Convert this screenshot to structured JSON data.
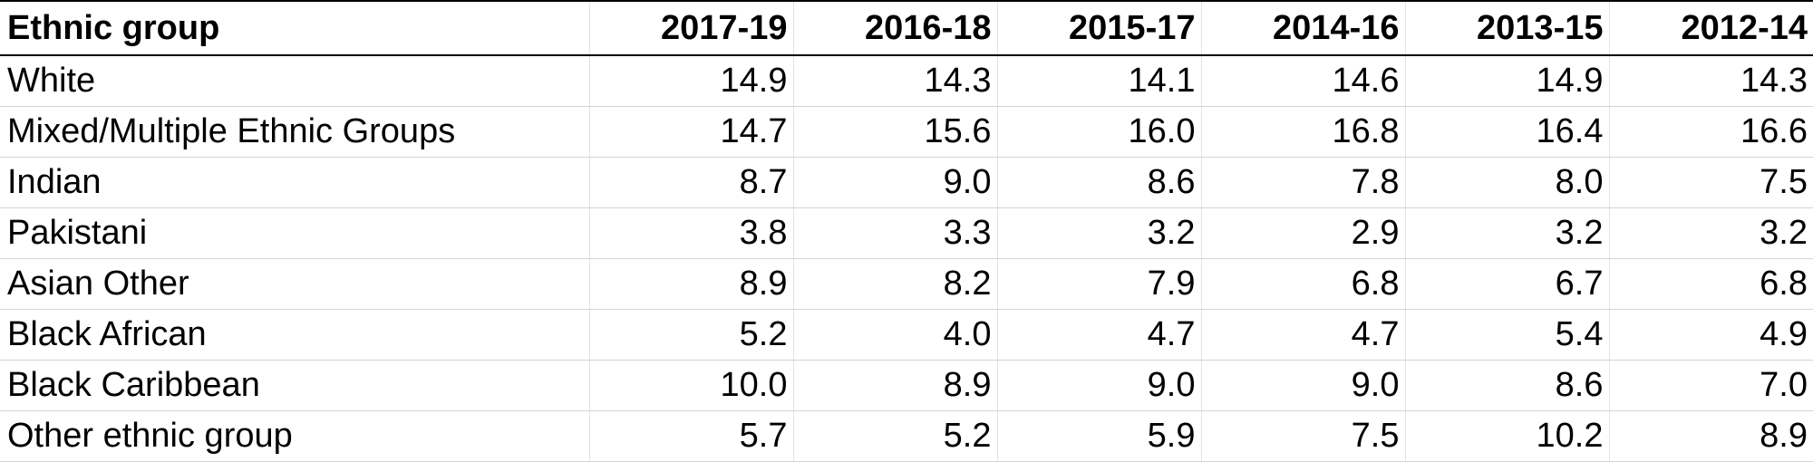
{
  "table": {
    "header": [
      "Ethnic group",
      "2017-19",
      "2016-18",
      "2015-17",
      "2014-16",
      "2013-15",
      "2012-14"
    ],
    "rows": [
      [
        "White",
        "14.9",
        "14.3",
        "14.1",
        "14.6",
        "14.9",
        "14.3"
      ],
      [
        "Mixed/Multiple Ethnic Groups",
        "14.7",
        "15.6",
        "16.0",
        "16.8",
        "16.4",
        "16.6"
      ],
      [
        "Indian",
        "8.7",
        "9.0",
        "8.6",
        "7.8",
        "8.0",
        "7.5"
      ],
      [
        "Pakistani",
        "3.8",
        "3.3",
        "3.2",
        "2.9",
        "3.2",
        "3.2"
      ],
      [
        "Asian Other",
        "8.9",
        "8.2",
        "7.9",
        "6.8",
        "6.7",
        "6.8"
      ],
      [
        "Black African",
        "5.2",
        "4.0",
        "4.7",
        "4.7",
        "5.4",
        "4.9"
      ],
      [
        "Black Caribbean",
        "10.0",
        "8.9",
        "9.0",
        "9.0",
        "8.6",
        "7.0"
      ],
      [
        "Other ethnic group",
        "5.7",
        "5.2",
        "5.9",
        "7.5",
        "10.2",
        "8.9"
      ]
    ]
  }
}
